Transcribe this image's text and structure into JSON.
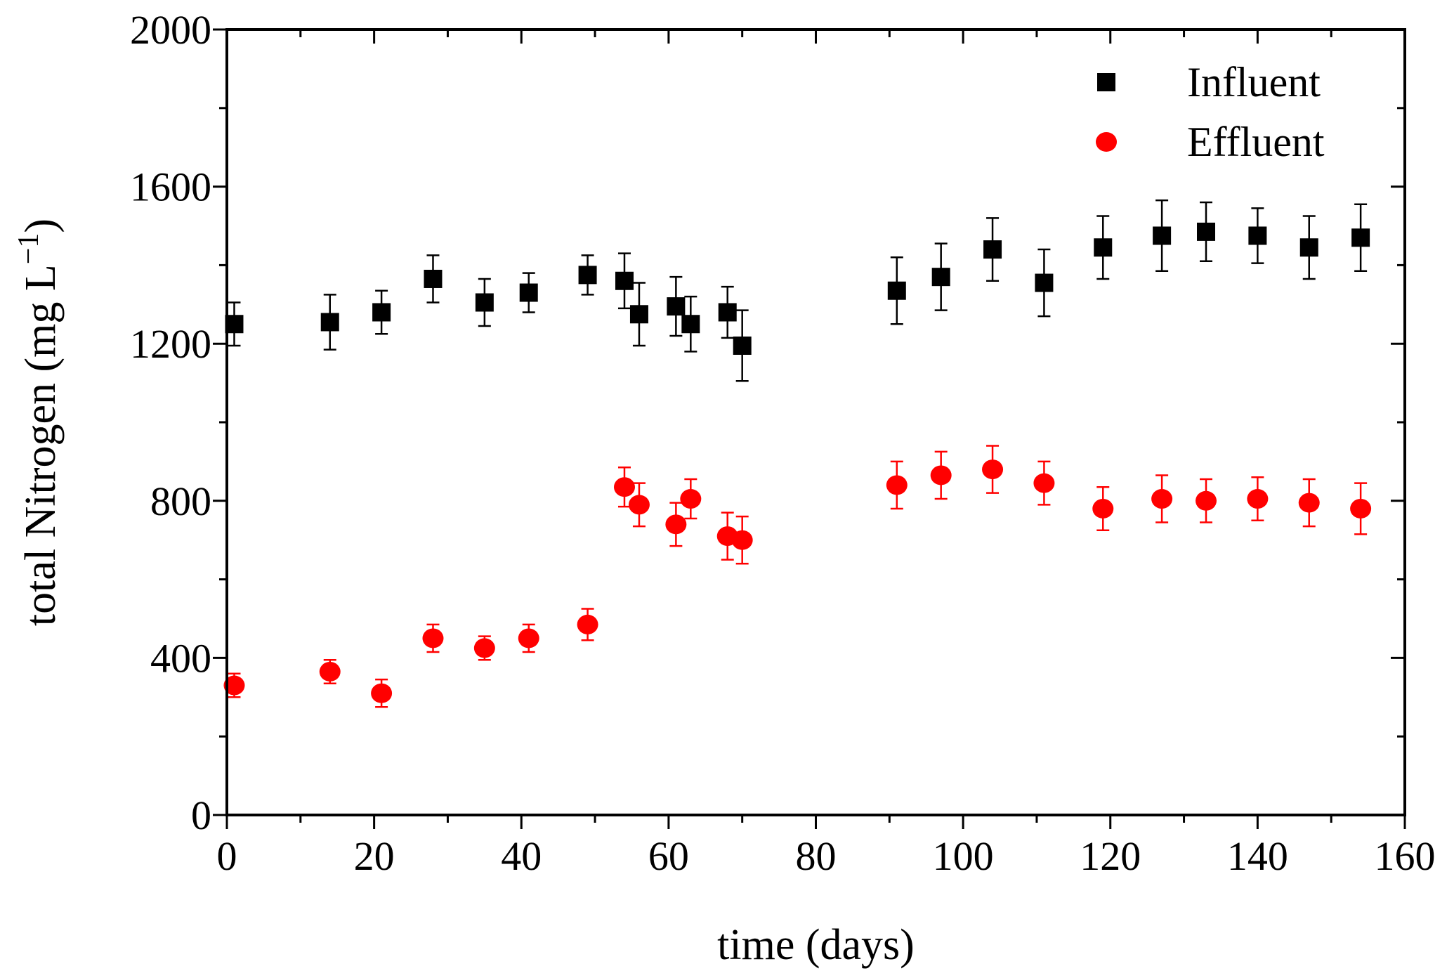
{
  "chart_data": {
    "type": "scatter",
    "title": "",
    "xlabel": "time (days)",
    "ylabel": "total Nitrogen (mg L",
    "ylabel_sup": "−1",
    "ylabel_close": ")",
    "xlim": [
      0,
      160
    ],
    "ylim": [
      0,
      2000
    ],
    "xticks": [
      0,
      20,
      40,
      60,
      80,
      100,
      120,
      140,
      160
    ],
    "xtick_labels": [
      "0",
      "20",
      "40",
      "60",
      "80",
      "100",
      "120",
      "140",
      "160"
    ],
    "yticks": [
      0,
      400,
      800,
      1200,
      1600,
      2000
    ],
    "ytick_labels": [
      "0",
      "400",
      "800",
      "1200",
      "1600",
      "2000"
    ],
    "x_minor_step": 10,
    "y_minor_step": 200,
    "grid": false,
    "legend_position": "top-right",
    "series": [
      {
        "name": "Influent",
        "marker": "square",
        "color": "#000000",
        "points": [
          {
            "x": 1,
            "y": 1250,
            "err": 55
          },
          {
            "x": 14,
            "y": 1255,
            "err": 70
          },
          {
            "x": 21,
            "y": 1280,
            "err": 55
          },
          {
            "x": 28,
            "y": 1365,
            "err": 60
          },
          {
            "x": 35,
            "y": 1305,
            "err": 60
          },
          {
            "x": 41,
            "y": 1330,
            "err": 50
          },
          {
            "x": 49,
            "y": 1375,
            "err": 50
          },
          {
            "x": 54,
            "y": 1360,
            "err": 70
          },
          {
            "x": 56,
            "y": 1275,
            "err": 80
          },
          {
            "x": 61,
            "y": 1295,
            "err": 75
          },
          {
            "x": 63,
            "y": 1250,
            "err": 70
          },
          {
            "x": 68,
            "y": 1280,
            "err": 65
          },
          {
            "x": 70,
            "y": 1195,
            "err": 90
          },
          {
            "x": 91,
            "y": 1335,
            "err": 85
          },
          {
            "x": 97,
            "y": 1370,
            "err": 85
          },
          {
            "x": 104,
            "y": 1440,
            "err": 80
          },
          {
            "x": 111,
            "y": 1355,
            "err": 85
          },
          {
            "x": 119,
            "y": 1445,
            "err": 80
          },
          {
            "x": 127,
            "y": 1475,
            "err": 90
          },
          {
            "x": 133,
            "y": 1485,
            "err": 75
          },
          {
            "x": 140,
            "y": 1475,
            "err": 70
          },
          {
            "x": 147,
            "y": 1445,
            "err": 80
          },
          {
            "x": 154,
            "y": 1470,
            "err": 85
          }
        ]
      },
      {
        "name": "Effluent",
        "marker": "circle",
        "color": "#ff0000",
        "points": [
          {
            "x": 1,
            "y": 330,
            "err": 30
          },
          {
            "x": 14,
            "y": 365,
            "err": 30
          },
          {
            "x": 21,
            "y": 310,
            "err": 35
          },
          {
            "x": 28,
            "y": 450,
            "err": 35
          },
          {
            "x": 35,
            "y": 425,
            "err": 30
          },
          {
            "x": 41,
            "y": 450,
            "err": 35
          },
          {
            "x": 49,
            "y": 485,
            "err": 40
          },
          {
            "x": 54,
            "y": 835,
            "err": 50
          },
          {
            "x": 56,
            "y": 790,
            "err": 55
          },
          {
            "x": 61,
            "y": 740,
            "err": 55
          },
          {
            "x": 63,
            "y": 805,
            "err": 50
          },
          {
            "x": 68,
            "y": 710,
            "err": 60
          },
          {
            "x": 70,
            "y": 700,
            "err": 60
          },
          {
            "x": 91,
            "y": 840,
            "err": 60
          },
          {
            "x": 97,
            "y": 865,
            "err": 60
          },
          {
            "x": 104,
            "y": 880,
            "err": 60
          },
          {
            "x": 111,
            "y": 845,
            "err": 55
          },
          {
            "x": 119,
            "y": 780,
            "err": 55
          },
          {
            "x": 127,
            "y": 805,
            "err": 60
          },
          {
            "x": 133,
            "y": 800,
            "err": 55
          },
          {
            "x": 140,
            "y": 805,
            "err": 55
          },
          {
            "x": 147,
            "y": 795,
            "err": 60
          },
          {
            "x": 154,
            "y": 780,
            "err": 65
          }
        ]
      }
    ]
  }
}
